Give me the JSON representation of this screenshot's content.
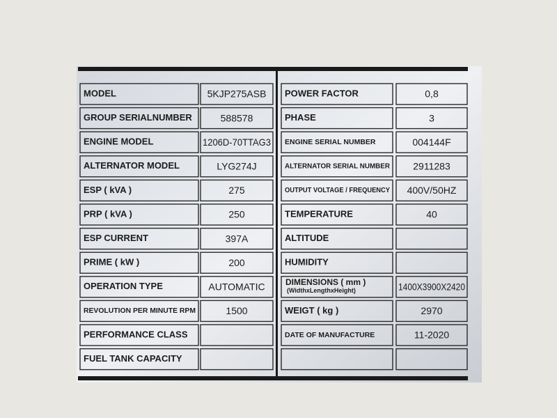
{
  "left": [
    {
      "label": "MODEL",
      "value": "5KJP275ASB"
    },
    {
      "label": "GROUP SERIALNUMBER",
      "value": "588578"
    },
    {
      "label": "ENGINE MODEL",
      "value": "1206D-70TTAG3"
    },
    {
      "label": "ALTERNATOR MODEL",
      "value": "LYG274J"
    },
    {
      "label": "ESP ( kVA )",
      "value": "275"
    },
    {
      "label": "PRP ( kVA )",
      "value": "250"
    },
    {
      "label": "ESP CURRENT",
      "value": "397A"
    },
    {
      "label": "PRIME ( kW )",
      "value": "200"
    },
    {
      "label": "OPERATION TYPE",
      "value": "AUTOMATIC"
    },
    {
      "label": "REVOLUTION PER MINUTE RPM",
      "value": "1500"
    },
    {
      "label": "PERFORMANCE CLASS"
    },
    {
      "label": "FUEL TANK CAPACITY"
    }
  ],
  "right": [
    {
      "label": "POWER FACTOR",
      "value": "0,8"
    },
    {
      "label": "PHASE",
      "value": "3"
    },
    {
      "label": "ENGINE SERIAL NUMBER",
      "value": "004144F"
    },
    {
      "label": "ALTERNATOR SERIAL NUMBER",
      "value": "2911283"
    },
    {
      "label": "OUTPUT VOLTAGE / FREQUENCY",
      "value": "400V/50HZ"
    },
    {
      "label": "TEMPERATURE",
      "value": "40"
    },
    {
      "label": "ALTITUDE"
    },
    {
      "label": "HUMIDITY"
    },
    {
      "label": "DIMENSIONS ( mm )",
      "sublabel": "(WidthxLengthxHeight)",
      "value": "1400X3900X2420"
    },
    {
      "label": "WEIGT ( kg )",
      "value": "2970"
    },
    {
      "label": "DATE OF MANUFACTURE",
      "value": "11-2020"
    }
  ]
}
